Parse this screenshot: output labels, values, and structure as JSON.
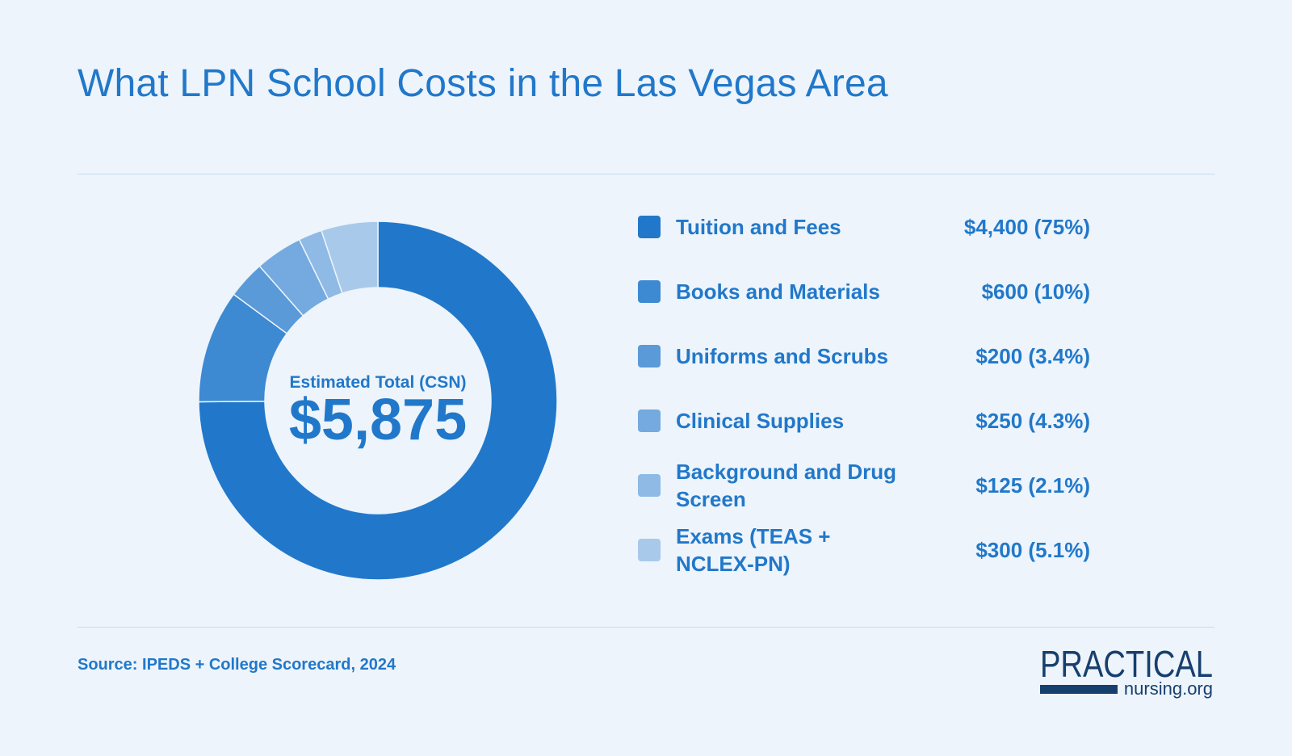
{
  "title": "What LPN School Costs in the Las Vegas Area",
  "source": "Source: IPEDS + College Scorecard, 2024",
  "logo": {
    "top": "PRACTICAL",
    "bottom": "nursing.org"
  },
  "chart_data": {
    "type": "pie",
    "title": "What LPN School Costs in the Las Vegas Area",
    "center_label": "Estimated Total (CSN)",
    "center_value": "$5,875",
    "legend_position": "right",
    "slices": [
      {
        "label": "Tuition and Fees",
        "value": 4400,
        "display": "$4,400 (75%)",
        "color": "#2178ca"
      },
      {
        "label": "Books and Materials",
        "value": 600,
        "display": "$600 (10%)",
        "color": "#3d89d2"
      },
      {
        "label": "Uniforms and Scrubs",
        "value": 200,
        "display": "$200 (3.4%)",
        "color": "#5a9ad8"
      },
      {
        "label": "Clinical Supplies",
        "value": 250,
        "display": "$250 (4.3%)",
        "color": "#74aadf"
      },
      {
        "label": "Background and Drug Screen",
        "value": 125,
        "display": "$125 (2.1%)",
        "color": "#8ebae5"
      },
      {
        "label": "Exams (TEAS + NCLEX-PN)",
        "value": 300,
        "display": "$300 (5.1%)",
        "color": "#a9c9ea"
      }
    ]
  }
}
